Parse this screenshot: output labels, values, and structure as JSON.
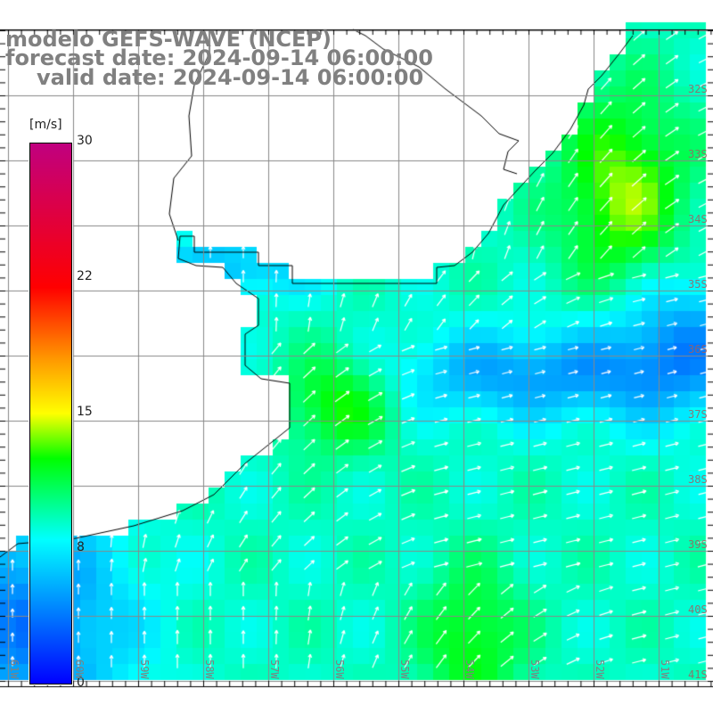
{
  "header": {
    "model_line": "modelo GEFS-WAVE (NCEP)",
    "forecast_line": "forecast date: 2024-09-14 06:00:00",
    "valid_line": "valid date: 2024-09-14 06:00:00"
  },
  "colorbar": {
    "unit": "[m/s]",
    "ticks": [
      "30",
      "22",
      "15",
      "8",
      "0"
    ],
    "range": [
      0,
      30
    ],
    "stops": [
      {
        "v": 0,
        "color": "#0000ff"
      },
      {
        "v": 8,
        "color": "#00ffff"
      },
      {
        "v": 12.5,
        "color": "#00ff00"
      },
      {
        "v": 15,
        "color": "#ffff00"
      },
      {
        "v": 18,
        "color": "#ff9900"
      },
      {
        "v": 22,
        "color": "#ff0000"
      },
      {
        "v": 30,
        "color": "#c0007f"
      }
    ]
  },
  "map": {
    "lon_labels": [
      "61W",
      "60W",
      "59W",
      "58W",
      "57W",
      "56W",
      "55W",
      "54W",
      "53W",
      "52W",
      "51W"
    ],
    "lat_labels": [
      "32S",
      "33S",
      "34S",
      "35S",
      "36S",
      "37S",
      "38S",
      "39S",
      "40S",
      "41S"
    ],
    "land_color": "#ffffff",
    "grid_color": "#888888",
    "arrow_color": "#ffffff",
    "coast_color": "#000000"
  }
}
